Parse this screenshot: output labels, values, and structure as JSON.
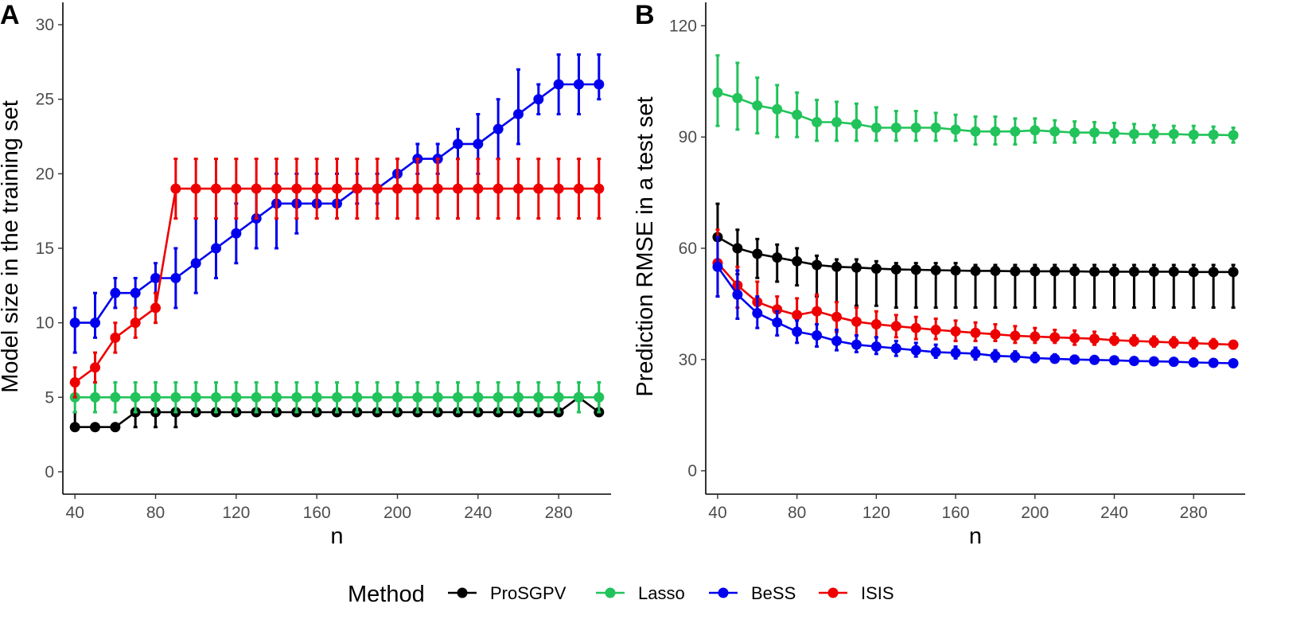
{
  "chart_data": [
    {
      "panel": "A",
      "type": "line",
      "xlabel": "n",
      "ylabel": "Model size in the training set",
      "xlim": [
        34,
        306
      ],
      "ylim": [
        -1.5,
        31.5
      ],
      "xticks": [
        40,
        80,
        120,
        160,
        200,
        240,
        280
      ],
      "yticks": [
        0,
        5,
        10,
        15,
        20,
        25,
        30
      ],
      "x": [
        40,
        50,
        60,
        70,
        80,
        90,
        100,
        110,
        120,
        130,
        140,
        150,
        160,
        170,
        180,
        190,
        200,
        210,
        220,
        230,
        240,
        250,
        260,
        270,
        280,
        290,
        300
      ],
      "series": [
        {
          "name": "ProSGPV",
          "color": "#000000",
          "values": [
            3,
            3,
            3,
            4,
            4,
            4,
            4,
            4,
            4,
            4,
            4,
            4,
            4,
            4,
            4,
            4,
            4,
            4,
            4,
            4,
            4,
            4,
            4,
            4,
            4,
            5,
            4
          ],
          "lower": [
            3,
            3,
            3,
            3,
            3,
            3,
            4,
            4,
            4,
            4,
            4,
            4,
            4,
            4,
            4,
            4,
            4,
            4,
            4,
            4,
            4,
            4,
            4,
            4,
            4,
            4,
            4
          ],
          "upper": [
            4,
            3,
            3,
            4,
            4,
            4,
            4,
            4,
            4,
            4,
            4,
            4,
            4,
            4,
            4,
            4,
            4,
            4,
            4,
            4,
            4,
            4,
            4,
            4,
            4,
            5,
            5
          ]
        },
        {
          "name": "Lasso",
          "color": "#21c35a",
          "values": [
            5,
            5,
            5,
            5,
            5,
            5,
            5,
            5,
            5,
            5,
            5,
            5,
            5,
            5,
            5,
            5,
            5,
            5,
            5,
            5,
            5,
            5,
            5,
            5,
            5,
            5,
            5
          ],
          "lower": [
            4,
            4,
            4,
            4,
            4,
            4,
            4,
            4,
            4,
            4,
            4,
            4,
            4,
            4,
            4,
            4,
            4,
            4,
            4,
            4,
            4,
            4,
            4,
            4,
            4,
            4,
            4
          ],
          "upper": [
            6,
            6,
            6,
            6,
            6,
            6,
            6,
            6,
            6,
            6,
            6,
            6,
            6,
            6,
            6,
            6,
            6,
            6,
            6,
            6,
            6,
            6,
            6,
            6,
            6,
            6,
            6
          ]
        },
        {
          "name": "BeSS",
          "color": "#0000ee",
          "values": [
            10,
            10,
            12,
            12,
            13,
            13,
            14,
            15,
            16,
            17,
            18,
            18,
            18,
            18,
            19,
            19,
            20,
            21,
            21,
            22,
            22,
            23,
            24,
            25,
            26,
            26,
            26
          ],
          "lower": [
            8,
            9,
            11,
            11,
            12,
            11,
            12,
            13,
            14,
            15,
            15,
            16,
            18,
            18,
            18,
            18,
            19,
            20,
            20,
            21,
            20,
            21,
            22,
            24,
            24,
            24,
            25
          ],
          "upper": [
            11,
            12,
            13,
            13,
            14,
            15,
            17,
            17,
            18,
            19,
            20,
            20,
            20,
            20,
            20,
            20,
            21,
            22,
            22,
            23,
            24,
            25,
            27,
            26,
            28,
            28,
            28
          ]
        },
        {
          "name": "ISIS",
          "color": "#ee0000",
          "values": [
            6,
            7,
            9,
            10,
            11,
            19,
            19,
            19,
            19,
            19,
            19,
            19,
            19,
            19,
            19,
            19,
            19,
            19,
            19,
            19,
            19,
            19,
            19,
            19,
            19,
            19,
            19
          ],
          "lower": [
            5,
            6,
            8,
            9,
            10,
            17,
            17,
            17,
            17,
            17,
            17,
            17,
            17,
            17,
            17,
            17,
            17,
            17,
            17,
            17,
            17,
            17,
            17,
            17,
            17,
            17,
            17
          ],
          "upper": [
            7,
            8,
            10,
            11,
            12,
            21,
            21,
            21,
            21,
            21,
            21,
            21,
            21,
            21,
            21,
            21,
            21,
            21,
            21,
            21,
            21,
            21,
            21,
            21,
            21,
            21,
            21
          ]
        }
      ]
    },
    {
      "panel": "B",
      "type": "line",
      "xlabel": "n",
      "ylabel": "Prediction RMSE in a test set",
      "xlim": [
        34,
        306
      ],
      "ylim": [
        -6.3,
        126.3
      ],
      "xticks": [
        40,
        80,
        120,
        160,
        200,
        240,
        280
      ],
      "yticks": [
        0,
        30,
        60,
        90,
        120
      ],
      "x": [
        40,
        50,
        60,
        70,
        80,
        90,
        100,
        110,
        120,
        130,
        140,
        150,
        160,
        170,
        180,
        190,
        200,
        210,
        220,
        230,
        240,
        250,
        260,
        270,
        280,
        290,
        300
      ],
      "series": [
        {
          "name": "Lasso",
          "color": "#21c35a",
          "values": [
            102,
            100.5,
            98.5,
            97.5,
            96,
            94,
            94,
            93.5,
            92.5,
            92.5,
            92.5,
            92.5,
            92,
            91.5,
            91.5,
            91.5,
            91.8,
            91.5,
            91.2,
            91.2,
            91,
            90.8,
            90.8,
            90.8,
            90.6,
            90.6,
            90.5
          ],
          "lower": [
            93,
            92,
            91,
            90,
            90,
            89,
            89,
            89,
            89,
            89,
            89,
            89,
            89,
            88,
            88,
            88,
            88.5,
            88.5,
            88.5,
            88.5,
            88.5,
            88.5,
            88.5,
            88.5,
            88.5,
            88.5,
            88.5
          ],
          "upper": [
            112,
            110,
            106,
            104,
            102,
            100,
            99.5,
            99,
            98,
            97,
            97,
            96.5,
            96,
            95.5,
            95.5,
            95,
            95,
            94.5,
            94.2,
            94,
            93.8,
            93.5,
            93.2,
            93,
            93,
            92.8,
            92.5
          ]
        },
        {
          "name": "ProSGPV",
          "color": "#000000",
          "values": [
            63,
            60,
            58.5,
            57.5,
            56.5,
            55.5,
            55,
            54.8,
            54.5,
            54.3,
            54.2,
            54.1,
            54,
            53.9,
            53.9,
            53.8,
            53.8,
            53.8,
            53.8,
            53.7,
            53.7,
            53.7,
            53.7,
            53.7,
            53.6,
            53.6,
            53.6
          ],
          "lower": [
            55,
            53,
            52,
            51,
            50,
            47,
            45.5,
            44.5,
            44.5,
            44,
            44,
            44,
            44,
            44,
            44,
            44,
            44,
            44,
            44,
            44,
            44,
            44,
            44,
            44,
            44,
            44,
            44
          ],
          "upper": [
            72,
            65,
            62.5,
            61,
            60,
            58,
            57,
            57,
            56.5,
            56,
            56,
            56,
            56,
            55.5,
            55.5,
            55.5,
            55.5,
            55.5,
            55.5,
            55.5,
            55.5,
            55.5,
            55.5,
            55.5,
            55.5,
            55.5,
            55.5
          ]
        },
        {
          "name": "ISIS",
          "color": "#ee0000",
          "values": [
            56,
            50,
            45.5,
            43.5,
            42,
            43,
            41.5,
            40.2,
            39.5,
            39,
            38.5,
            38,
            37.6,
            37.2,
            36.8,
            36.4,
            36.2,
            36,
            35.8,
            35.6,
            35.2,
            35,
            34.8,
            34.6,
            34.4,
            34.2,
            34
          ],
          "lower": [
            47,
            44,
            41.5,
            40,
            37.5,
            37.5,
            37.5,
            36.5,
            36,
            36,
            35.5,
            35.5,
            35,
            35,
            35,
            34.5,
            34.5,
            34.5,
            34,
            34,
            34,
            33.8,
            33.5,
            33.3,
            33,
            33,
            33
          ],
          "upper": [
            65,
            55,
            51,
            47,
            46.5,
            47.5,
            45.5,
            44,
            43,
            42,
            41.5,
            41,
            40.5,
            40,
            39.5,
            39,
            38.5,
            38,
            37.8,
            37.5,
            37,
            36.5,
            36.2,
            36,
            35.8,
            35.5,
            35
          ]
        },
        {
          "name": "BeSS",
          "color": "#0000ee",
          "values": [
            55,
            47.5,
            42.5,
            40,
            37.5,
            36.5,
            35,
            34,
            33.5,
            33,
            32.5,
            32,
            31.8,
            31.6,
            31,
            30.8,
            30.4,
            30.2,
            30,
            29.9,
            29.8,
            29.6,
            29.5,
            29.4,
            29.2,
            29.1,
            29
          ],
          "lower": [
            47,
            41,
            38.5,
            36.5,
            34.5,
            33.5,
            32.5,
            32,
            31.5,
            31,
            30.8,
            30.5,
            30.3,
            30,
            29.5,
            29.5,
            29.3,
            29.2,
            29,
            29,
            28.9,
            28.8,
            28.7,
            28.6,
            28.4,
            28.3,
            28.2
          ],
          "upper": [
            63,
            54,
            47,
            43,
            40.5,
            39.5,
            38,
            36.5,
            36,
            35,
            34.5,
            34,
            33.5,
            33.2,
            32.5,
            32.2,
            31.8,
            31.4,
            31,
            30.8,
            30.7,
            30.5,
            30.3,
            30.2,
            30,
            29.9,
            29.8
          ]
        }
      ]
    }
  ],
  "legend": {
    "title": "Method",
    "placement": "bottom",
    "items": [
      {
        "label": "ProSGPV",
        "color": "#000000"
      },
      {
        "label": "Lasso",
        "color": "#21c35a"
      },
      {
        "label": "BeSS",
        "color": "#0000ee"
      },
      {
        "label": "ISIS",
        "color": "#ee0000"
      }
    ]
  }
}
